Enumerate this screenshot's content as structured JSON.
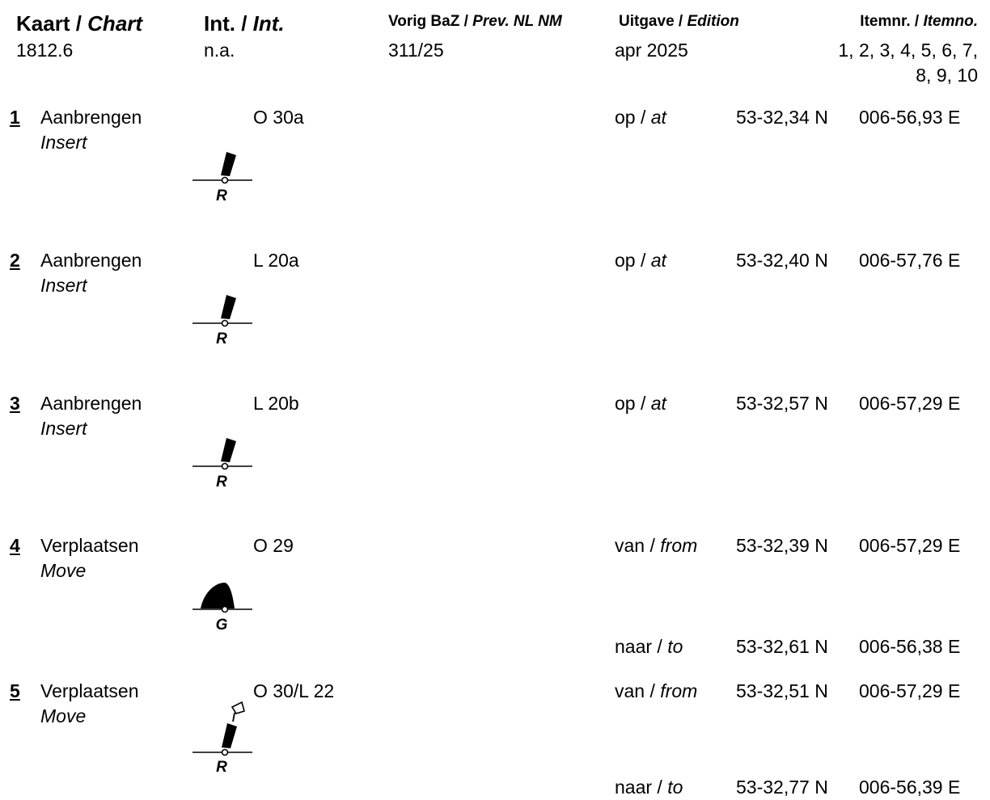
{
  "header": {
    "chart_nl": "Kaart / ",
    "chart_en": "Chart",
    "int_nl": "Int. / ",
    "int_en": "Int.",
    "prev_nl": "Vorig BaZ / ",
    "prev_en": "Prev. NL NM",
    "edition_nl": "Uitgave / ",
    "edition_en": "Edition",
    "itemno_nl": "Itemnr. / ",
    "itemno_en": "Itemno."
  },
  "chart_info": {
    "chart": "1812.6",
    "int": "n.a.",
    "prev_nm": "311/25",
    "edition": "apr 2025",
    "itemnos_line1": "1, 2, 3, 4, 5, 6, 7,",
    "itemnos_line2": "8, 9, 10"
  },
  "items": [
    {
      "number": "1",
      "action_nl": "Aanbrengen",
      "action_en": "Insert",
      "name": "O 30a",
      "symbol_letter": "R",
      "positions": [
        {
          "prep_nl": "op / ",
          "prep_en": "at",
          "lat": "53-32,34 N",
          "lon": "006-56,93 E"
        }
      ]
    },
    {
      "number": "2",
      "action_nl": "Aanbrengen",
      "action_en": "Insert",
      "name": "L 20a",
      "symbol_letter": "R",
      "positions": [
        {
          "prep_nl": "op / ",
          "prep_en": "at",
          "lat": "53-32,40 N",
          "lon": "006-57,76 E"
        }
      ]
    },
    {
      "number": "3",
      "action_nl": "Aanbrengen",
      "action_en": "Insert",
      "name": "L 20b",
      "symbol_letter": "R",
      "positions": [
        {
          "prep_nl": "op / ",
          "prep_en": "at",
          "lat": "53-32,57 N",
          "lon": "006-57,29 E"
        }
      ]
    },
    {
      "number": "4",
      "action_nl": "Verplaatsen",
      "action_en": "Move",
      "name": "O 29",
      "symbol_letter": "G",
      "positions": [
        {
          "prep_nl": "van / ",
          "prep_en": "from",
          "lat": "53-32,39 N",
          "lon": "006-57,29 E"
        },
        {
          "prep_nl": "naar / ",
          "prep_en": "to",
          "lat": "53-32,61 N",
          "lon": "006-56,38 E"
        }
      ]
    },
    {
      "number": "5",
      "action_nl": "Verplaatsen",
      "action_en": "Move",
      "name": "O 30/L 22",
      "symbol_letter": "R",
      "positions": [
        {
          "prep_nl": "van / ",
          "prep_en": "from",
          "lat": "53-32,51 N",
          "lon": "006-57,29 E"
        },
        {
          "prep_nl": "naar / ",
          "prep_en": "to",
          "lat": "53-32,77 N",
          "lon": "006-56,39 E"
        }
      ]
    }
  ]
}
